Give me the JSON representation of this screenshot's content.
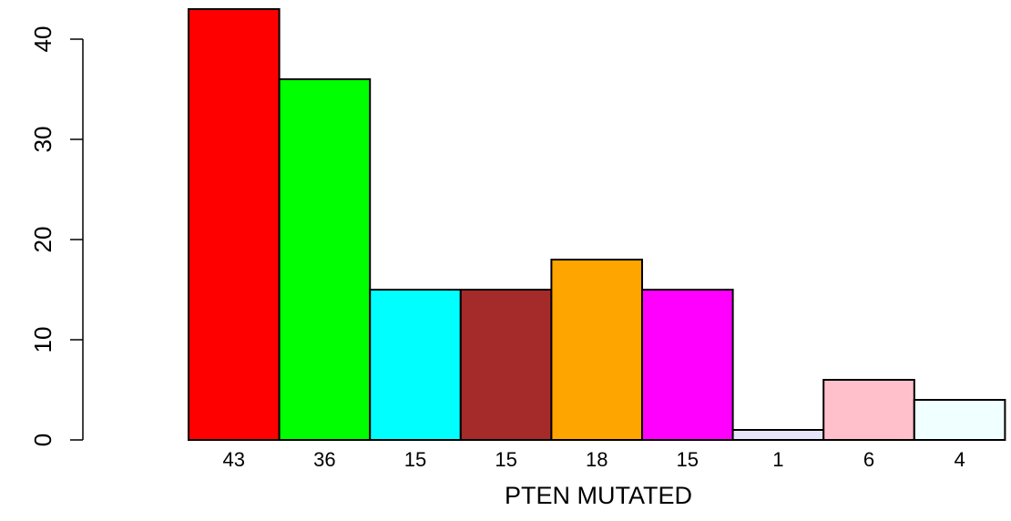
{
  "chart_data": {
    "type": "bar",
    "title": "",
    "xlabel": "PTEN MUTATED",
    "ylabel": "",
    "categories": [
      "43",
      "36",
      "15",
      "15",
      "18",
      "15",
      "1",
      "6",
      "4"
    ],
    "values": [
      43,
      36,
      15,
      15,
      18,
      15,
      1,
      6,
      4
    ],
    "colors": [
      "#ff0000",
      "#00ff00",
      "#00ffff",
      "#a52a2a",
      "#ffa500",
      "#ff00ff",
      "#e6e6fa",
      "#ffc0cb",
      "#f0ffff"
    ],
    "ylim": [
      0,
      43
    ],
    "yticks": [
      0,
      10,
      20,
      30,
      40
    ],
    "grid": false,
    "legend": "none"
  }
}
